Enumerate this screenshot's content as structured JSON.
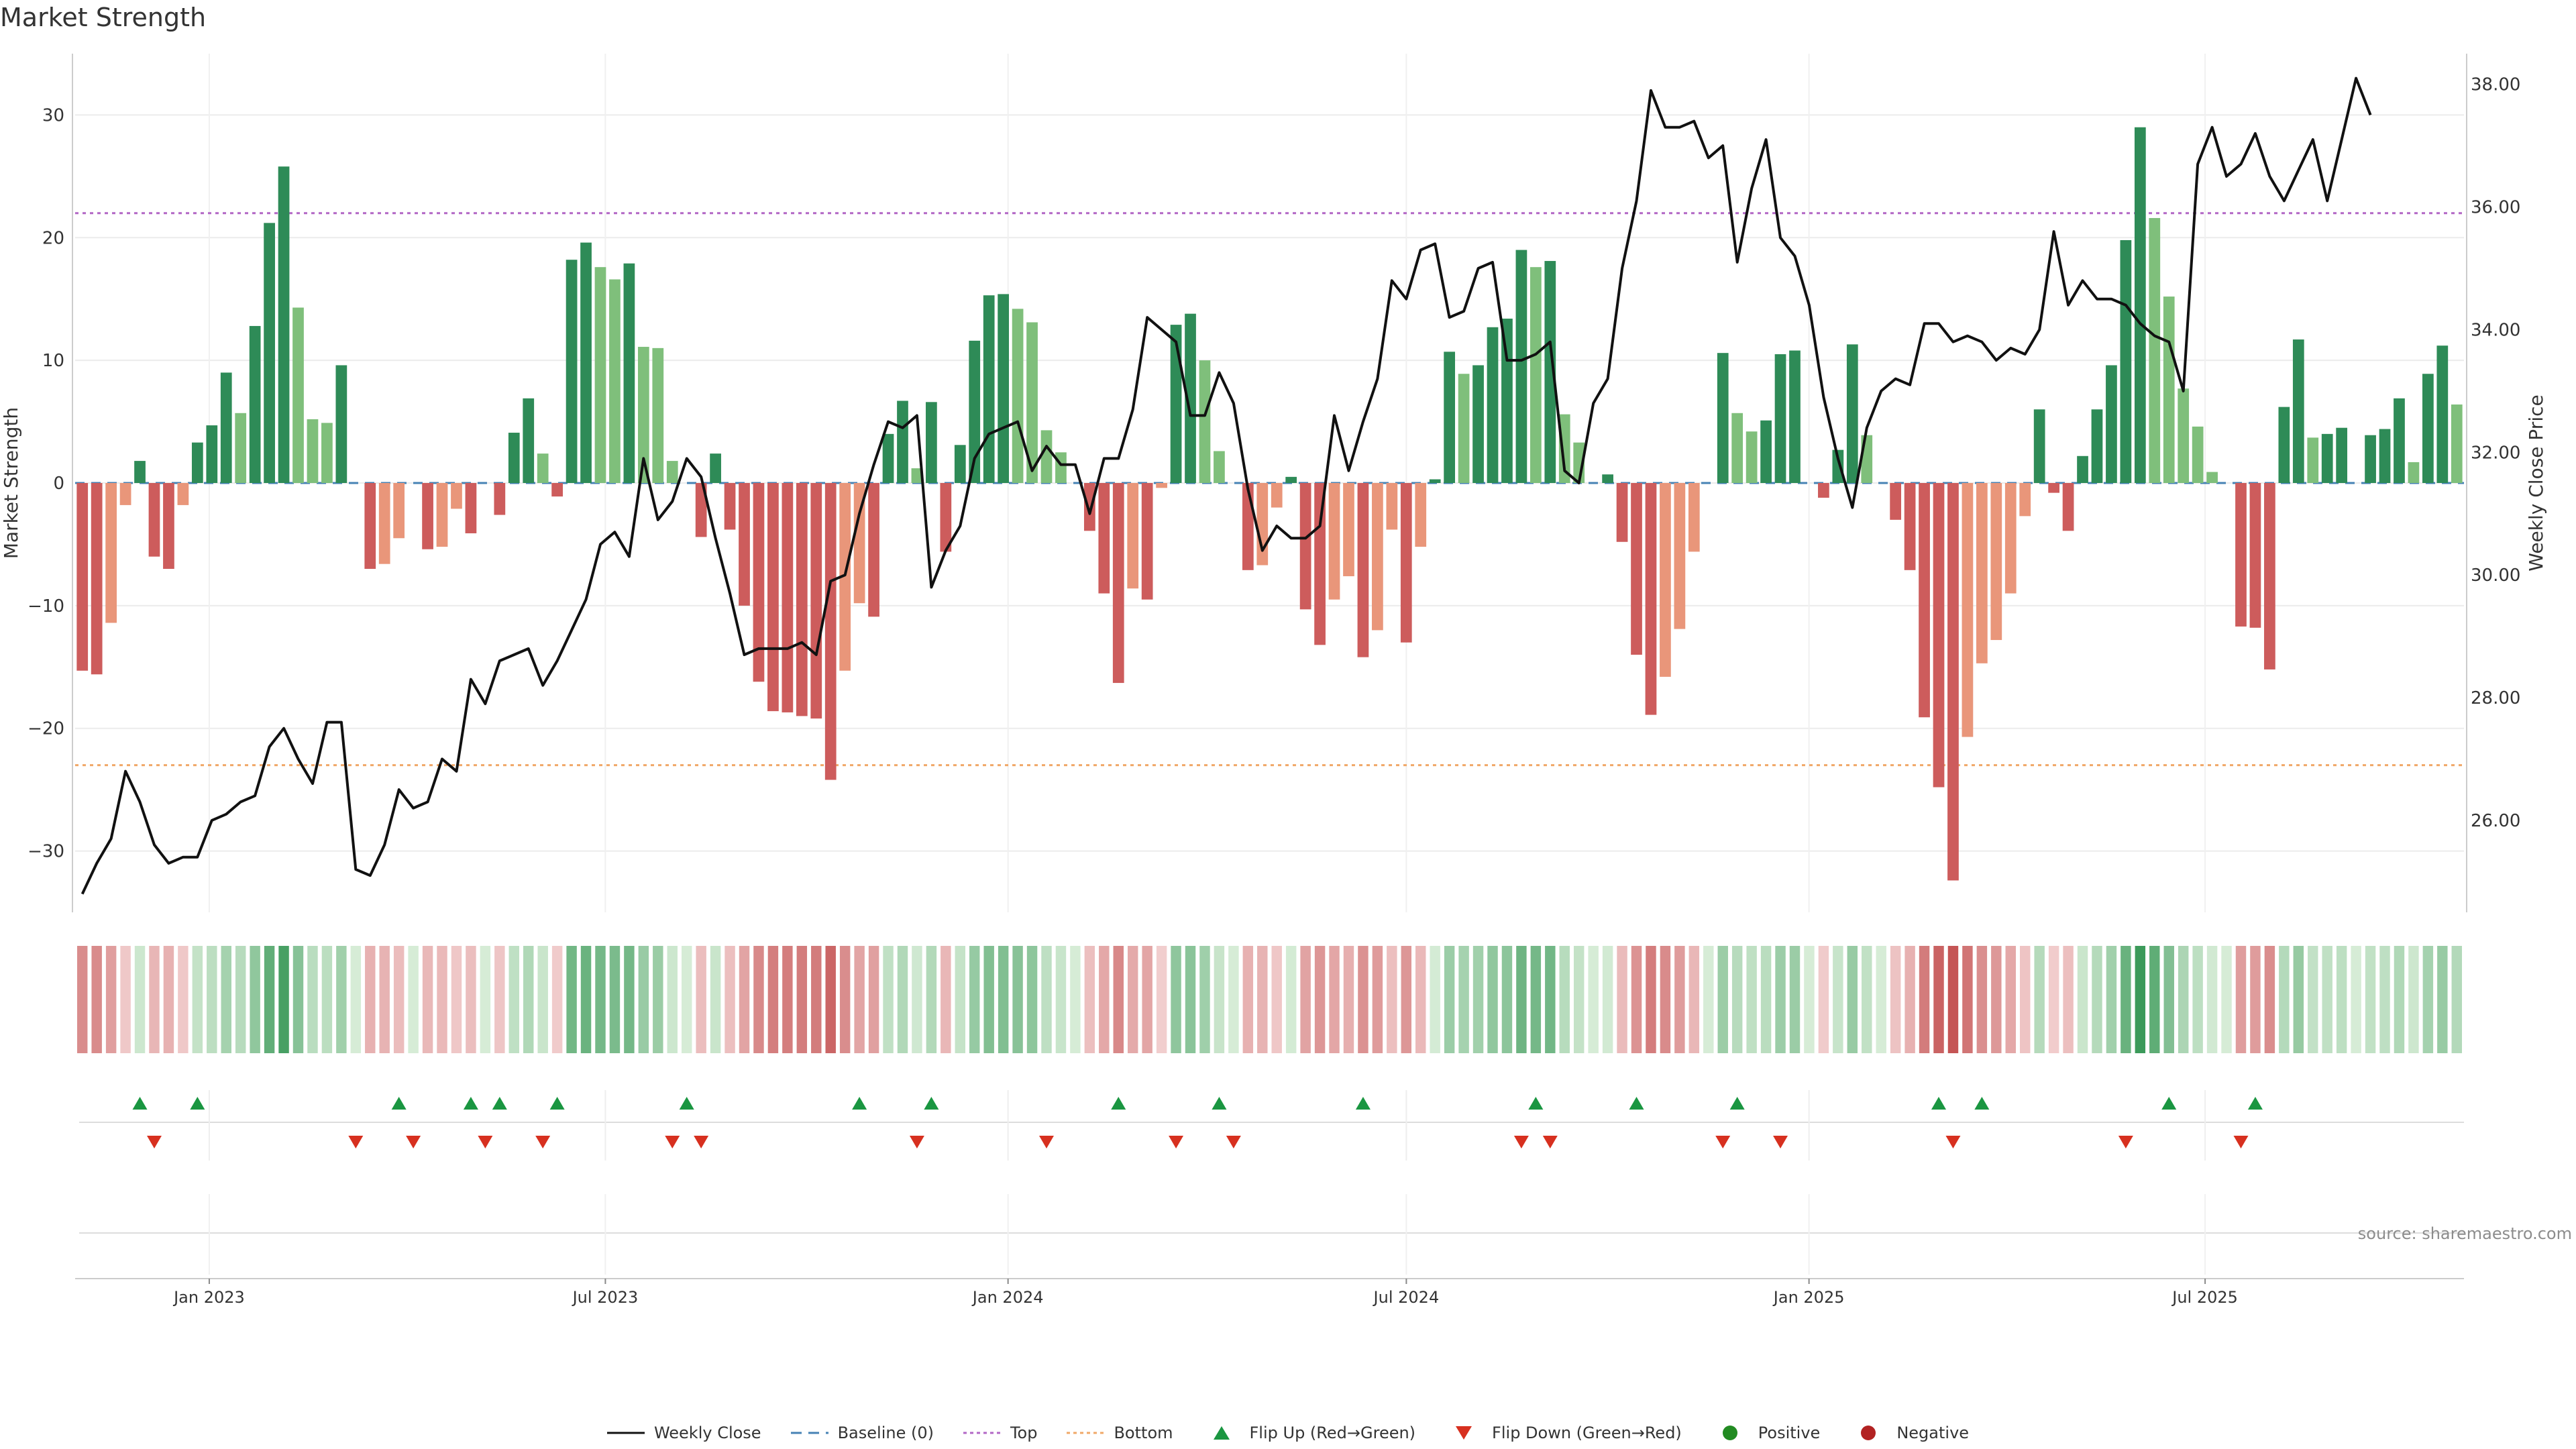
{
  "title": "Market Strength",
  "source": "source: sharemaestro.com",
  "colors": {
    "strong_green": "#2e8b57",
    "light_green": "#7fbf7b",
    "strong_red": "#cd5c5c",
    "light_red": "#e9967a",
    "line": "#111111",
    "baseline": "#4682b4",
    "top": "#b267c6",
    "bottom": "#f0a868",
    "flip_up": "#1a9641",
    "flip_down": "#d7301f",
    "positive": "#228b22",
    "negative": "#b22222"
  },
  "legend": [
    {
      "key": "line",
      "label": "Weekly Close",
      "icon": "solid-line-icon"
    },
    {
      "key": "baseline",
      "label": "Baseline (0)",
      "icon": "dashed-line-icon"
    },
    {
      "key": "top",
      "label": "Top",
      "icon": "dotted-line-icon"
    },
    {
      "key": "bottom",
      "label": "Bottom",
      "icon": "dotted-line-icon"
    },
    {
      "key": "flip_up",
      "label": "Flip Up (Red→Green)",
      "icon": "triangle-up-icon"
    },
    {
      "key": "flip_down",
      "label": "Flip Down (Green→Red)",
      "icon": "triangle-down-icon"
    },
    {
      "key": "positive",
      "label": "Positive",
      "icon": "dot-icon"
    },
    {
      "key": "negative",
      "label": "Negative",
      "icon": "dot-icon"
    }
  ],
  "chart_data": {
    "type": "bar",
    "title": "Market Strength",
    "ylabel": "Market Strength",
    "y2label": "Weekly Close Price",
    "ylim": [
      -35,
      35
    ],
    "y2lim": [
      24.5,
      38.5
    ],
    "yticks": [
      -30,
      -20,
      -10,
      0,
      10,
      20,
      30
    ],
    "yticklabels": [
      "−30",
      "−20",
      "−10",
      "0",
      "10",
      "20",
      "30"
    ],
    "y2ticks": [
      26,
      28,
      30,
      32,
      34,
      36,
      38
    ],
    "y2ticklabels": [
      "26.00",
      "28.00",
      "30.00",
      "32.00",
      "34.00",
      "36.00",
      "38.00"
    ],
    "top_line": 22,
    "bottom_line": -23,
    "start_date": "2022-11-04",
    "end_date": "2025-10-24",
    "xticks": [
      {
        "date": "2023-01-01",
        "label": "Jan 2023"
      },
      {
        "date": "2023-07-01",
        "label": "Jul 2023"
      },
      {
        "date": "2024-01-01",
        "label": "Jan 2024"
      },
      {
        "date": "2024-07-01",
        "label": "Jul 2024"
      },
      {
        "date": "2025-01-01",
        "label": "Jan 2025"
      },
      {
        "date": "2025-07-01",
        "label": "Jul 2025"
      }
    ],
    "grid": true,
    "legend_position": "bottom",
    "strength": [
      -15.3,
      -15.6,
      -11.4,
      -1.8,
      1.8,
      -6,
      -7,
      -1.8,
      3.3,
      4.7,
      9,
      5.7,
      12.8,
      21.2,
      25.8,
      14.3,
      5.2,
      4.9,
      9.6,
      0,
      -7,
      -6.6,
      -4.5,
      0,
      -5.4,
      -5.2,
      -2.1,
      -4.1,
      0,
      -2.6,
      4.1,
      6.9,
      2.4,
      -1.1,
      18.2,
      19.6,
      17.6,
      16.6,
      17.9,
      11.1,
      11,
      1.8,
      0,
      -4.4,
      2.4,
      -3.8,
      -10,
      -16.2,
      -18.6,
      -18.7,
      -19,
      -19.2,
      -24.2,
      -15.3,
      -9.8,
      -10.9,
      4,
      6.7,
      1.2,
      6.6,
      -5.6,
      3.1,
      11.6,
      15.3,
      15.4,
      14.2,
      13.1,
      4.3,
      2.5,
      0,
      -3.9,
      -9,
      -16.3,
      -8.6,
      -9.5,
      -0.4,
      12.9,
      13.8,
      10,
      2.6,
      0,
      -7.1,
      -6.7,
      -2,
      0.5,
      -10.3,
      -13.2,
      -9.5,
      -7.6,
      -14.2,
      -12,
      -3.8,
      -13,
      -5.2,
      0.3,
      10.7,
      8.9,
      9.6,
      12.7,
      13.4,
      19,
      17.6,
      18.1,
      5.6,
      3.3,
      0,
      0.7,
      -4.8,
      -14,
      -18.9,
      -15.8,
      -11.9,
      -5.6,
      0,
      10.6,
      5.7,
      4.2,
      5.1,
      10.5,
      10.8,
      0,
      -1.2,
      2.7,
      11.3,
      3.9,
      0,
      -3,
      -7.1,
      -19.1,
      -24.8,
      -32.4,
      -20.7,
      -14.7,
      -12.8,
      -9,
      -2.7,
      6,
      -0.8,
      -3.9,
      2.2,
      6,
      9.6,
      19.8,
      29,
      21.6,
      15.2,
      7.7,
      4.6,
      0.9,
      0,
      -11.7,
      -11.8,
      -15.2,
      6.2,
      11.7,
      3.7,
      4,
      4.5,
      0,
      3.9,
      4.4,
      6.9,
      1.7,
      8.9,
      11.2,
      6.4
    ],
    "close": [
      24.8,
      25.3,
      25.7,
      26.8,
      26.3,
      25.6,
      25.3,
      25.4,
      25.4,
      26,
      26.1,
      26.3,
      26.4,
      27.2,
      27.5,
      27,
      26.6,
      27.6,
      27.6,
      25.2,
      25.1,
      25.6,
      26.5,
      26.2,
      26.3,
      27,
      26.8,
      28.3,
      27.9,
      28.6,
      28.7,
      28.8,
      28.2,
      28.6,
      29.1,
      29.6,
      30.5,
      30.7,
      30.3,
      31.9,
      30.9,
      31.2,
      31.9,
      31.6,
      30.6,
      29.7,
      28.7,
      28.8,
      28.8,
      28.8,
      28.9,
      28.7,
      29.9,
      30,
      31,
      31.8,
      32.5,
      32.4,
      32.6,
      29.8,
      30.4,
      30.8,
      31.9,
      32.3,
      32.4,
      32.5,
      31.7,
      32.1,
      31.8,
      31.8,
      31,
      31.9,
      31.9,
      32.7,
      34.2,
      34.0,
      33.8,
      32.6,
      32.6,
      33.3,
      32.8,
      31.4,
      30.4,
      30.8,
      30.6,
      30.6,
      30.8,
      32.6,
      31.7,
      32.5,
      33.2,
      34.8,
      34.5,
      35.3,
      35.4,
      34.2,
      34.3,
      35.0,
      35.1,
      33.5,
      33.5,
      33.6,
      33.8,
      31.7,
      31.5,
      32.8,
      33.2,
      35.0,
      36.1,
      37.9,
      37.3,
      37.3,
      37.4,
      36.8,
      37.0,
      35.1,
      36.3,
      37.1,
      35.5,
      35.2,
      34.4,
      32.9,
      31.9,
      31.1,
      32.4,
      33.0,
      33.2,
      33.1,
      34.1,
      34.1,
      33.8,
      33.9,
      33.8,
      33.5,
      33.7,
      33.6,
      34.0,
      35.6,
      34.4,
      34.8,
      34.5,
      34.5,
      34.4,
      34.1,
      33.9,
      33.8,
      33.0,
      36.7,
      37.3,
      36.5,
      36.7,
      37.2,
      36.5,
      36.1,
      36.6,
      37.1,
      36.1,
      37.1,
      38.1,
      37.5
    ],
    "flip_up_weeks": [
      4,
      8,
      22,
      27,
      29,
      33,
      42,
      54,
      59,
      72,
      79,
      89,
      101,
      108,
      115,
      129,
      132,
      145,
      151
    ],
    "flip_down_weeks": [
      5,
      19,
      23,
      28,
      32,
      41,
      43,
      58,
      67,
      76,
      80,
      100,
      102,
      114,
      118,
      130,
      142,
      150
    ]
  }
}
